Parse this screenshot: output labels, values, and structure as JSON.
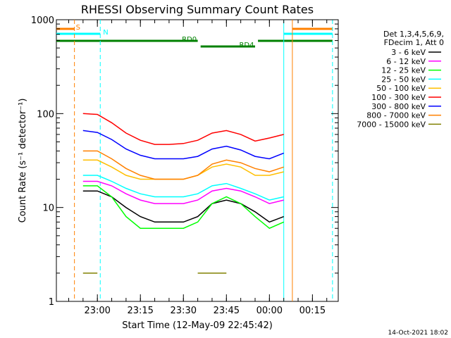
{
  "chart_data": {
    "type": "line",
    "title": "RHESSI Observing Summary Count Rates",
    "xlabel": "Start Time (12-May-09 22:45:42)",
    "ylabel": "Count Rate (s⁻¹ detector⁻¹)",
    "y_scale": "log",
    "ylim": [
      1,
      1000
    ],
    "xlim": [
      "22:45:42",
      "00:24:00"
    ],
    "x_ticks": [
      "23:00",
      "23:15",
      "23:30",
      "23:45",
      "00:00",
      "00:15"
    ],
    "y_ticks": [
      "1",
      "10",
      "100",
      "1000"
    ],
    "grid": false,
    "legend_position": "right",
    "legend_header": [
      "Det 1,3,4,5,6,9,",
      "FDecim 1, Att 0"
    ],
    "timestamp": "14-Oct-2021 18:02",
    "flags": [
      {
        "label": "S",
        "color": "#ff8000",
        "segments": [
          [
            "22:45:42",
            "22:52:00"
          ],
          [
            "00:08:00",
            "00:22:00"
          ]
        ]
      },
      {
        "label": "N",
        "color": "#00ffff",
        "segments": [
          [
            "22:45:42",
            "23:01:00"
          ],
          [
            "00:05:00",
            "00:22:00"
          ]
        ]
      },
      {
        "label": "RD0",
        "color": "#008000",
        "segments": [
          [
            "22:45:42",
            "23:35:00"
          ],
          [
            "23:56:00",
            "00:22:00"
          ]
        ]
      },
      {
        "label": "RD4",
        "color": "#008000",
        "segments": [
          [
            "23:36:00",
            "23:55:00"
          ]
        ]
      }
    ],
    "vlines": [
      {
        "x": "22:52:00",
        "color": "#ff8000",
        "style": "dashed"
      },
      {
        "x": "23:01:00",
        "color": "#00ffff",
        "style": "dashed"
      },
      {
        "x": "00:05:00",
        "color": "#00ffff",
        "style": "solid"
      },
      {
        "x": "00:08:00",
        "color": "#ff8000",
        "style": "solid"
      },
      {
        "x": "00:22:00",
        "color": "#00ffff",
        "style": "dashed"
      }
    ],
    "x": [
      "22:55",
      "23:00",
      "23:05",
      "23:10",
      "23:15",
      "23:20",
      "23:25",
      "23:30",
      "23:35",
      "23:40",
      "23:45",
      "23:50",
      "23:55",
      "00:00",
      "00:05"
    ],
    "series": [
      {
        "name": "3 - 6 keV",
        "color": "#000000",
        "values": [
          15,
          15,
          13,
          10,
          8,
          7,
          7,
          7,
          8,
          11,
          12,
          11,
          9,
          7,
          8
        ]
      },
      {
        "name": "6 - 12 keV",
        "color": "#ff00ff",
        "values": [
          19,
          19,
          17,
          14,
          12,
          11,
          11,
          11,
          12,
          15,
          16,
          15,
          13,
          11,
          12
        ]
      },
      {
        "name": "12 - 25 keV",
        "color": "#00ff00",
        "values": [
          17,
          17,
          13,
          8,
          6,
          6,
          6,
          6,
          7,
          11,
          13,
          11,
          8,
          6,
          7
        ]
      },
      {
        "name": "25 - 50 keV",
        "color": "#00ffff",
        "values": [
          22,
          22,
          19,
          16,
          14,
          13,
          13,
          13,
          14,
          17,
          18,
          16,
          14,
          12,
          13
        ]
      },
      {
        "name": "50 - 100 keV",
        "color": "#ffbf00",
        "values": [
          32,
          32,
          27,
          22,
          20,
          20,
          20,
          20,
          22,
          27,
          29,
          27,
          22,
          22,
          24
        ]
      },
      {
        "name": "100 - 300 keV",
        "color": "#ff0000",
        "values": [
          100,
          98,
          80,
          62,
          52,
          47,
          47,
          48,
          52,
          62,
          66,
          60,
          51,
          55,
          60
        ]
      },
      {
        "name": "300 - 800 keV",
        "color": "#0000ff",
        "values": [
          66,
          63,
          53,
          42,
          36,
          33,
          33,
          33,
          35,
          42,
          45,
          41,
          35,
          33,
          38
        ]
      },
      {
        "name": "800 - 7000 keV",
        "color": "#ff8000",
        "values": [
          40,
          40,
          33,
          26,
          22,
          20,
          20,
          20,
          22,
          29,
          32,
          30,
          26,
          24,
          27
        ]
      },
      {
        "name": "7000 - 15000 keV",
        "color": "#808000",
        "values": [
          2,
          2,
          null,
          null,
          null,
          null,
          null,
          null,
          2,
          2,
          2,
          null,
          null,
          null,
          null
        ]
      }
    ]
  }
}
